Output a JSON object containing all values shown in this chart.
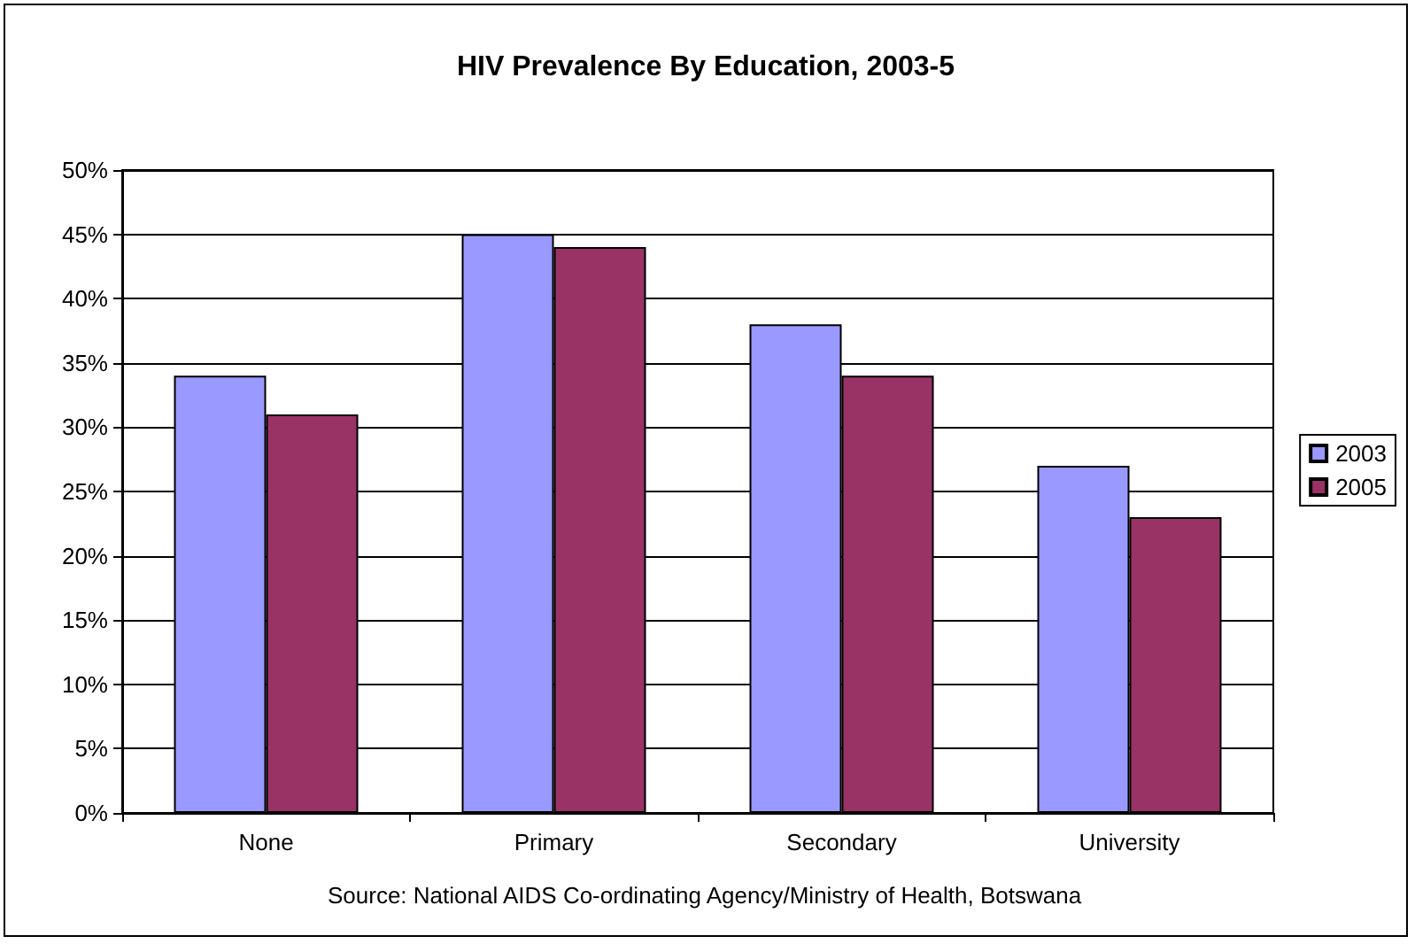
{
  "chart_data": {
    "type": "bar",
    "title": "HIV Prevalence By Education, 2003-5",
    "categories": [
      "None",
      "Primary",
      "Secondary",
      "University"
    ],
    "series": [
      {
        "name": "2003",
        "color": "#9999ff",
        "values": [
          34,
          45,
          38,
          27
        ]
      },
      {
        "name": "2005",
        "color": "#993366",
        "values": [
          31,
          44,
          34,
          23
        ]
      }
    ],
    "ylim": [
      0,
      50
    ],
    "yticks": [
      {
        "value": 0,
        "label": "0%"
      },
      {
        "value": 5,
        "label": "5%"
      },
      {
        "value": 10,
        "label": "10%"
      },
      {
        "value": 15,
        "label": "15%"
      },
      {
        "value": 20,
        "label": "20%"
      },
      {
        "value": 25,
        "label": "25%"
      },
      {
        "value": 30,
        "label": "30%"
      },
      {
        "value": 35,
        "label": "35%"
      },
      {
        "value": 40,
        "label": "40%"
      },
      {
        "value": 45,
        "label": "45%"
      },
      {
        "value": 50,
        "label": "50%"
      }
    ],
    "grid": "y",
    "legend": "right",
    "annotations": [
      "Source: National AIDS Co-ordinating Agency/Ministry of Health, Botswana"
    ]
  }
}
